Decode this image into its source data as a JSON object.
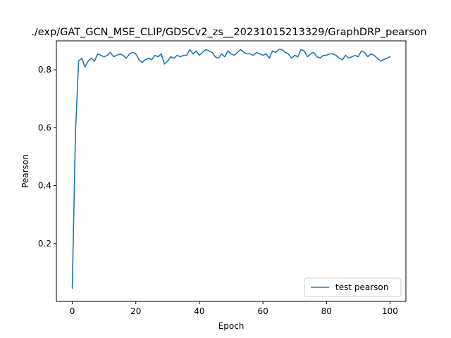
{
  "chart_data": {
    "type": "line",
    "title": "./exp/GAT_GCN_MSE_CLIP/GDSCv2_zs__20231015213329/GraphDRP_pearson",
    "xlabel": "Epoch",
    "ylabel": "Pearson",
    "xlim": [
      -5,
      105
    ],
    "ylim": [
      0.0,
      0.9
    ],
    "xticks": [
      0,
      20,
      40,
      60,
      80,
      100
    ],
    "yticks": [
      0.2,
      0.4,
      0.6,
      0.8
    ],
    "xtick_labels": [
      "0",
      "20",
      "40",
      "60",
      "80",
      "100"
    ],
    "ytick_labels": [
      "0.2",
      "0.4",
      "0.6",
      "0.8"
    ],
    "grid": false,
    "legend_position": "lower-right",
    "series": [
      {
        "name": "test pearson",
        "color": "#1f77b4",
        "x": [
          0,
          1,
          2,
          3,
          4,
          5,
          6,
          7,
          8,
          9,
          10,
          11,
          12,
          13,
          14,
          15,
          16,
          17,
          18,
          19,
          20,
          21,
          22,
          23,
          24,
          25,
          26,
          27,
          28,
          29,
          30,
          31,
          32,
          33,
          34,
          35,
          36,
          37,
          38,
          39,
          40,
          41,
          42,
          43,
          44,
          45,
          46,
          47,
          48,
          49,
          50,
          51,
          52,
          53,
          54,
          55,
          56,
          57,
          58,
          59,
          60,
          61,
          62,
          63,
          64,
          65,
          66,
          67,
          68,
          69,
          70,
          71,
          72,
          73,
          74,
          75,
          76,
          77,
          78,
          79,
          80,
          81,
          82,
          83,
          84,
          85,
          86,
          87,
          88,
          89,
          90,
          91,
          92,
          93,
          94,
          95,
          96,
          97,
          98,
          99,
          100
        ],
        "y": [
          0.045,
          0.58,
          0.83,
          0.84,
          0.81,
          0.83,
          0.84,
          0.83,
          0.855,
          0.85,
          0.845,
          0.85,
          0.86,
          0.845,
          0.85,
          0.855,
          0.85,
          0.84,
          0.855,
          0.86,
          0.855,
          0.835,
          0.825,
          0.835,
          0.84,
          0.835,
          0.85,
          0.845,
          0.855,
          0.82,
          0.83,
          0.845,
          0.84,
          0.85,
          0.845,
          0.85,
          0.85,
          0.87,
          0.855,
          0.865,
          0.85,
          0.86,
          0.87,
          0.865,
          0.86,
          0.845,
          0.84,
          0.855,
          0.845,
          0.865,
          0.855,
          0.85,
          0.86,
          0.87,
          0.86,
          0.855,
          0.855,
          0.85,
          0.86,
          0.855,
          0.85,
          0.855,
          0.84,
          0.865,
          0.86,
          0.87,
          0.87,
          0.86,
          0.855,
          0.84,
          0.85,
          0.845,
          0.87,
          0.865,
          0.845,
          0.855,
          0.86,
          0.845,
          0.84,
          0.85,
          0.85,
          0.855,
          0.855,
          0.85,
          0.84,
          0.835,
          0.85,
          0.84,
          0.845,
          0.85,
          0.845,
          0.865,
          0.86,
          0.845,
          0.855,
          0.85,
          0.84,
          0.83,
          0.835,
          0.84,
          0.845
        ]
      }
    ]
  }
}
